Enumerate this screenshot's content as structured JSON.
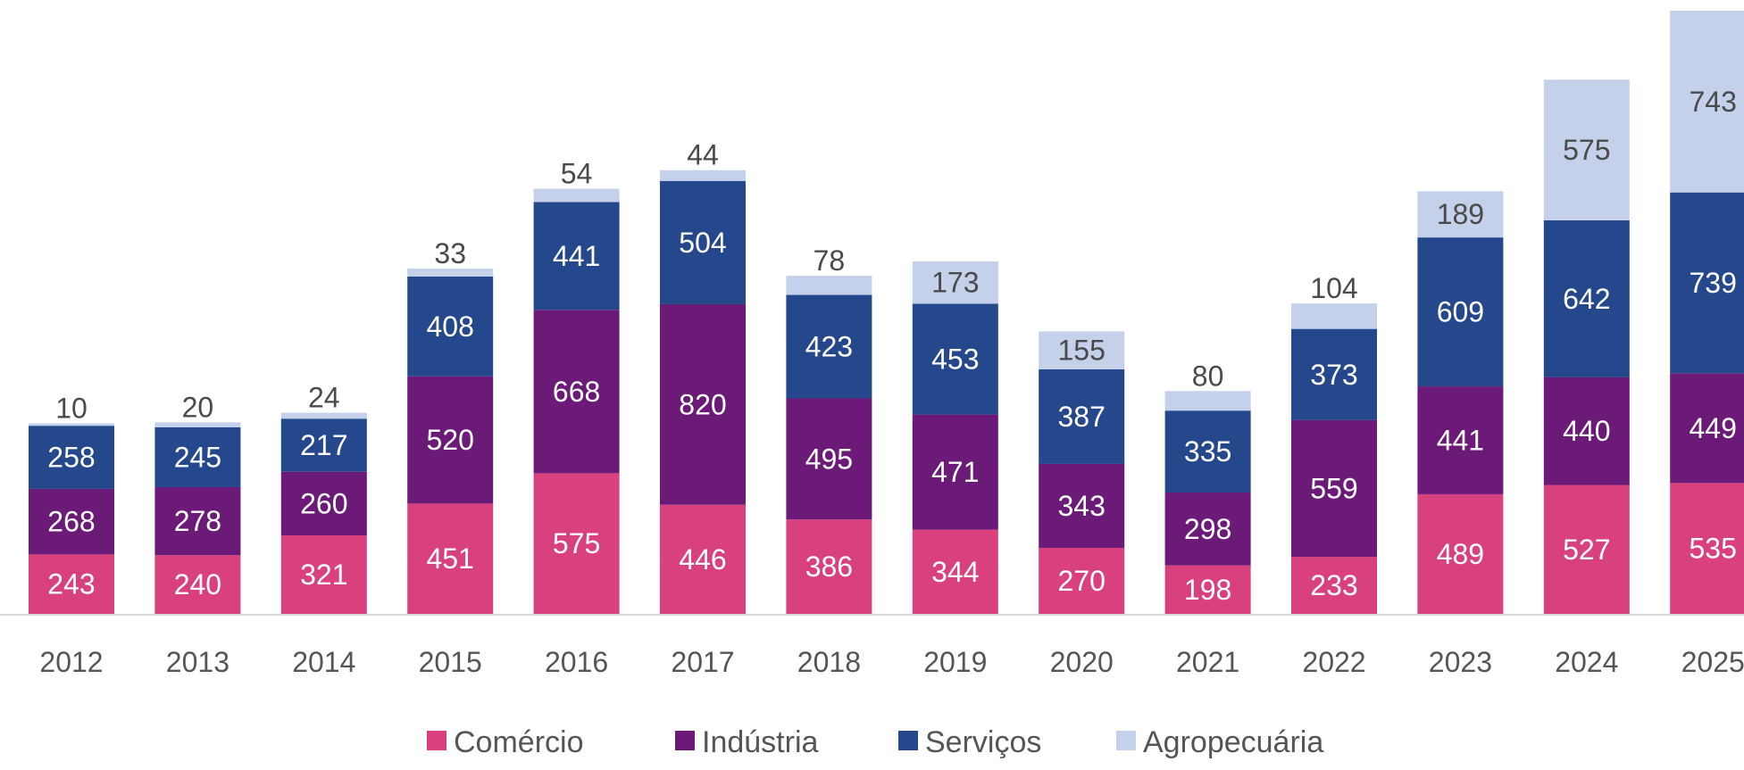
{
  "chart_data": {
    "type": "bar",
    "stacked": true,
    "title": "",
    "xlabel": "",
    "ylabel": "",
    "categories": [
      "2012",
      "2013",
      "2014",
      "2015",
      "2016",
      "2017",
      "2018",
      "2019",
      "2020",
      "2021",
      "2022",
      "2023",
      "2024",
      "2025"
    ],
    "series": [
      {
        "name": "Comércio",
        "color": "#d9407e",
        "values": [
          243,
          240,
          321,
          451,
          575,
          446,
          386,
          344,
          270,
          198,
          233,
          489,
          527,
          535
        ]
      },
      {
        "name": "Indústria",
        "color": "#6b1a78",
        "values": [
          268,
          278,
          260,
          520,
          668,
          820,
          495,
          471,
          343,
          298,
          559,
          441,
          440,
          449
        ]
      },
      {
        "name": "Serviços",
        "color": "#25478c",
        "values": [
          258,
          245,
          217,
          408,
          441,
          504,
          423,
          453,
          387,
          335,
          373,
          609,
          642,
          739
        ]
      },
      {
        "name": "Agropecuária",
        "color": "#c5d0eb",
        "values": [
          10,
          20,
          24,
          33,
          54,
          44,
          78,
          173,
          155,
          80,
          104,
          189,
          575,
          743
        ]
      }
    ],
    "ylim": [
      0,
      2466
    ],
    "grid": false,
    "legend": "bottom"
  }
}
